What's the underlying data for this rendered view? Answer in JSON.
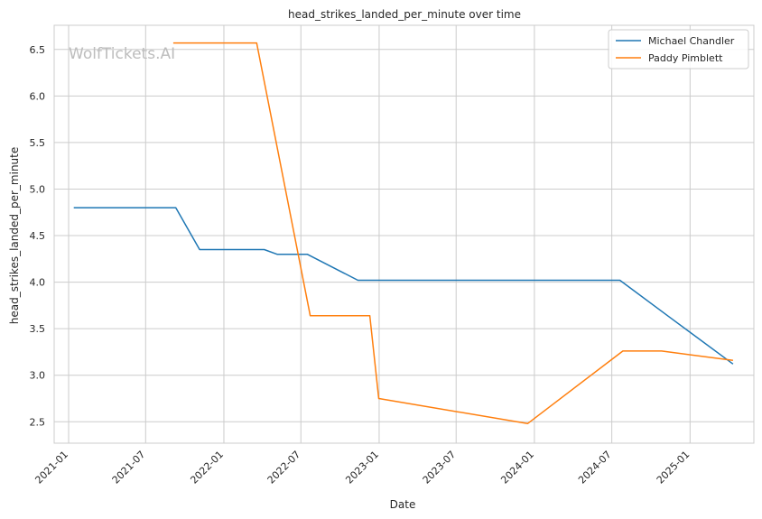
{
  "watermark": "WolfTickets.AI",
  "chart_data": {
    "type": "line",
    "title": "head_strikes_landed_per_minute over time",
    "xlabel": "Date",
    "ylabel": "head_strikes_landed_per_minute",
    "x_axis": "date",
    "xlim": [
      "2020-11-28",
      "2025-05-31"
    ],
    "ylim": [
      2.27,
      6.76
    ],
    "x_ticks": [
      "2021-01",
      "2021-07",
      "2022-01",
      "2022-07",
      "2023-01",
      "2023-07",
      "2024-01",
      "2024-07",
      "2025-01"
    ],
    "y_ticks": [
      2.5,
      3.0,
      3.5,
      4.0,
      4.5,
      5.0,
      5.5,
      6.0,
      6.5
    ],
    "y_tick_labels": [
      "2.5",
      "3.0",
      "3.5",
      "4.0",
      "4.5",
      "5.0",
      "5.5",
      "6.0",
      "6.5"
    ],
    "grid": true,
    "legend_position": "top-right",
    "series": [
      {
        "name": "Michael Chandler",
        "color": "#1f77b4",
        "points": [
          {
            "x": "2021-01-13",
            "y": 4.8
          },
          {
            "x": "2021-09-10",
            "y": 4.8
          },
          {
            "x": "2021-11-05",
            "y": 4.35
          },
          {
            "x": "2022-04-06",
            "y": 4.35
          },
          {
            "x": "2022-05-06",
            "y": 4.3
          },
          {
            "x": "2022-07-16",
            "y": 4.3
          },
          {
            "x": "2022-11-12",
            "y": 4.02
          },
          {
            "x": "2024-07-20",
            "y": 4.02
          },
          {
            "x": "2024-11-15",
            "y": 3.62
          },
          {
            "x": "2025-04-12",
            "y": 3.12
          }
        ]
      },
      {
        "name": "Paddy Pimblett",
        "color": "#ff7f0e",
        "points": [
          {
            "x": "2021-09-04",
            "y": 6.57
          },
          {
            "x": "2022-03-19",
            "y": 6.57
          },
          {
            "x": "2022-07-23",
            "y": 3.64
          },
          {
            "x": "2022-12-10",
            "y": 3.64
          },
          {
            "x": "2022-12-31",
            "y": 2.75
          },
          {
            "x": "2023-12-16",
            "y": 2.48
          },
          {
            "x": "2024-07-27",
            "y": 3.26
          },
          {
            "x": "2024-10-26",
            "y": 3.26
          },
          {
            "x": "2025-04-12",
            "y": 3.16
          }
        ]
      }
    ]
  }
}
